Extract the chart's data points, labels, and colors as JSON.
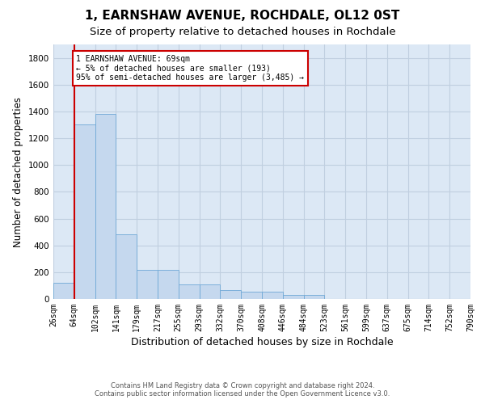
{
  "title": "1, EARNSHAW AVENUE, ROCHDALE, OL12 0ST",
  "subtitle": "Size of property relative to detached houses in Rochdale",
  "xlabel": "Distribution of detached houses by size in Rochdale",
  "ylabel": "Number of detached properties",
  "bar_values": [
    120,
    1300,
    1380,
    480,
    215,
    215,
    110,
    110,
    65,
    55,
    55,
    30,
    30,
    0,
    0,
    0,
    0,
    0,
    0,
    0
  ],
  "bar_labels": [
    "26sqm",
    "64sqm",
    "102sqm",
    "141sqm",
    "179sqm",
    "217sqm",
    "255sqm",
    "293sqm",
    "332sqm",
    "370sqm",
    "408sqm",
    "446sqm",
    "484sqm",
    "523sqm",
    "561sqm",
    "599sqm",
    "637sqm",
    "675sqm",
    "714sqm",
    "752sqm",
    "790sqm"
  ],
  "bar_color": "#c5d8ee",
  "bar_edge_color": "#6fa8d6",
  "ylim": [
    0,
    1900
  ],
  "yticks": [
    0,
    200,
    400,
    600,
    800,
    1000,
    1200,
    1400,
    1600,
    1800
  ],
  "vline_x_index": 1,
  "vline_color": "#cc0000",
  "annotation_text": "1 EARNSHAW AVENUE: 69sqm\n← 5% of detached houses are smaller (193)\n95% of semi-detached houses are larger (3,485) →",
  "annotation_box_color": "#cc0000",
  "annotation_bg_color": "#ffffff",
  "footer_line1": "Contains HM Land Registry data © Crown copyright and database right 2024.",
  "footer_line2": "Contains public sector information licensed under the Open Government Licence v3.0.",
  "bg_color": "#dce8f5",
  "grid_color": "#c8d8e8",
  "title_fontsize": 11,
  "subtitle_fontsize": 9.5,
  "tick_label_fontsize": 7,
  "ylabel_fontsize": 8.5,
  "xlabel_fontsize": 9
}
